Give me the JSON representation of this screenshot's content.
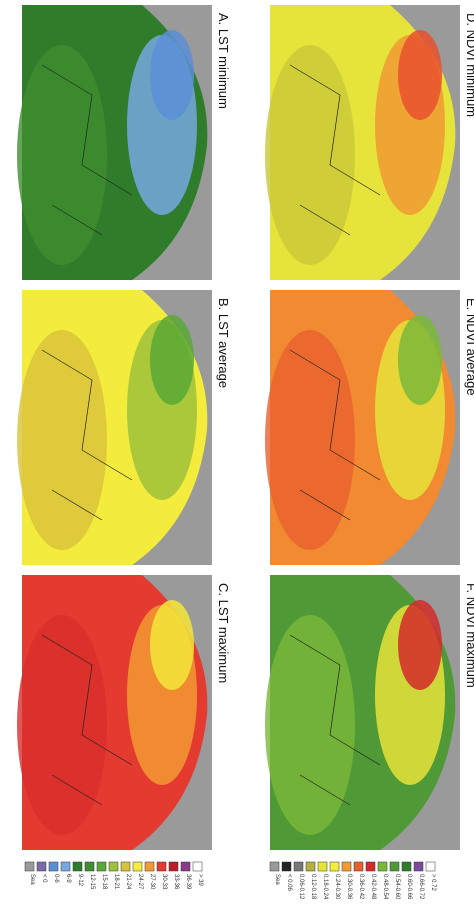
{
  "panels": [
    {
      "label": "A. LST minimum",
      "colors": [
        "#2f7d2a",
        "#3f8f30",
        "#76a7e0",
        "#5b8fd6"
      ]
    },
    {
      "label": "B. LST average",
      "colors": [
        "#f4ec3c",
        "#d8c23a",
        "#9cc23a",
        "#5aa836"
      ]
    },
    {
      "label": "C. LST maximum",
      "colors": [
        "#e43a30",
        "#d82e2a",
        "#f29a32",
        "#f3e83a"
      ]
    },
    {
      "label": "D. NDVI minimum",
      "colors": [
        "#e6e33a",
        "#c9c83a",
        "#f09a32",
        "#e8502e"
      ]
    },
    {
      "label": "E. NDVI average",
      "colors": [
        "#f28a32",
        "#e8602e",
        "#e6e33a",
        "#7ab83a"
      ]
    },
    {
      "label": "F. NDVI maximum",
      "colors": [
        "#4f9a36",
        "#7ab83a",
        "#e6e33a",
        "#d42a2a"
      ]
    }
  ],
  "legends": [
    {
      "items": [
        {
          "label": "Sea",
          "color": "#9a9a9a"
        },
        {
          "label": "< 0",
          "color": "#7a6aa8"
        },
        {
          "label": "0-6",
          "color": "#5b8fd6"
        },
        {
          "label": "6-9",
          "color": "#76a7e0"
        },
        {
          "label": "9-12",
          "color": "#2f7d2a"
        },
        {
          "label": "12-15",
          "color": "#3f8f30"
        },
        {
          "label": "15-18",
          "color": "#5aa836"
        },
        {
          "label": "18-21",
          "color": "#9cc23a"
        },
        {
          "label": "21-24",
          "color": "#d8c23a"
        },
        {
          "label": "24-27",
          "color": "#f4ec3c"
        },
        {
          "label": "27-30",
          "color": "#f29a32"
        },
        {
          "label": "30-33",
          "color": "#e43a30"
        },
        {
          "label": "33-36",
          "color": "#b8202a"
        },
        {
          "label": "36-39",
          "color": "#8a3a8a"
        },
        {
          "label": "> 39",
          "color": "#ffffff"
        }
      ]
    },
    {
      "items": [
        {
          "label": "Sea",
          "color": "#9a9a9a"
        },
        {
          "label": "< 0.06",
          "color": "#222222"
        },
        {
          "label": "0.06-0.12",
          "color": "#777777"
        },
        {
          "label": "0.12-0.18",
          "color": "#b5b040"
        },
        {
          "label": "0.18-0.24",
          "color": "#e6e33a"
        },
        {
          "label": "0.24-0.30",
          "color": "#f4ec3c"
        },
        {
          "label": "0.30-0.36",
          "color": "#f29a32"
        },
        {
          "label": "0.36-0.42",
          "color": "#e8602e"
        },
        {
          "label": "0.42-0.48",
          "color": "#d42a2a"
        },
        {
          "label": "0.48-0.54",
          "color": "#7ab83a"
        },
        {
          "label": "0.54-0.60",
          "color": "#4f9a36"
        },
        {
          "label": "0.60-0.66",
          "color": "#2f7d2a"
        },
        {
          "label": "0.66-0.72",
          "color": "#7a4aa0"
        },
        {
          "label": "> 0.72",
          "color": "#ffffff"
        }
      ]
    }
  ]
}
